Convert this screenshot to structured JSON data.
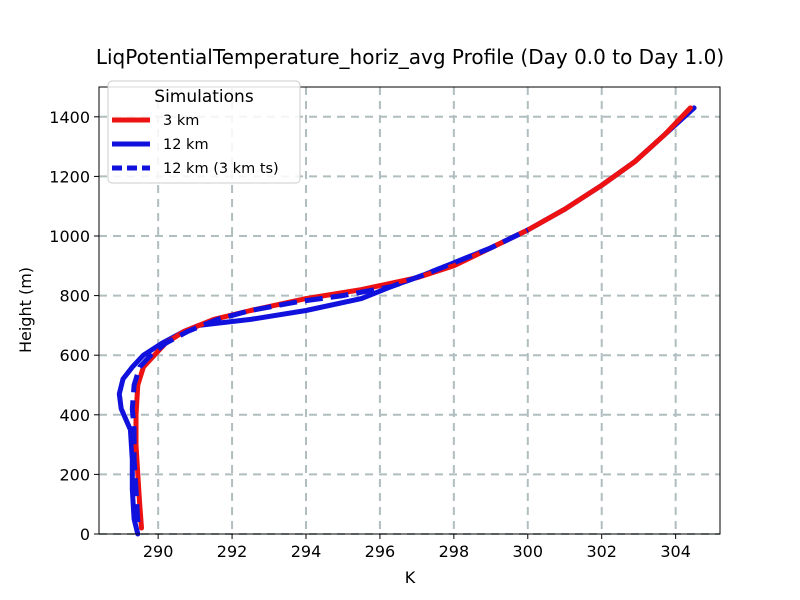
{
  "chart_data": {
    "type": "line",
    "title": "LiqPotentialTemperature_horiz_avg Profile (Day 0.0 to Day 1.0)",
    "xlabel": "K",
    "ylabel": "Height (m)",
    "xlim": [
      288.4,
      305.2
    ],
    "ylim": [
      0,
      1500
    ],
    "xticks": [
      290,
      292,
      294,
      296,
      298,
      300,
      302,
      304
    ],
    "yticks": [
      0,
      200,
      400,
      600,
      800,
      1000,
      1200,
      1400
    ],
    "grid": true,
    "legend": {
      "title": "Simulations",
      "placement": "upper-left"
    },
    "series": [
      {
        "name": "3 km",
        "color": "#ee1111",
        "dash": "solid",
        "points": [
          [
            289.55,
            20
          ],
          [
            289.5,
            100
          ],
          [
            289.45,
            200
          ],
          [
            289.4,
            300
          ],
          [
            289.4,
            400
          ],
          [
            289.45,
            500
          ],
          [
            289.6,
            560
          ],
          [
            289.9,
            600
          ],
          [
            290.2,
            640
          ],
          [
            290.7,
            680
          ],
          [
            291.5,
            720
          ],
          [
            292.5,
            750
          ],
          [
            294,
            790
          ],
          [
            295.5,
            820
          ],
          [
            297,
            860
          ],
          [
            298,
            900
          ],
          [
            299,
            960
          ],
          [
            300,
            1020
          ],
          [
            301,
            1090
          ],
          [
            302,
            1170
          ],
          [
            302.9,
            1250
          ],
          [
            303.7,
            1340
          ],
          [
            304.4,
            1430
          ]
        ]
      },
      {
        "name": "12 km",
        "color": "#1111dd",
        "dash": "solid",
        "points": [
          [
            289.45,
            0
          ],
          [
            289.35,
            50
          ],
          [
            289.3,
            150
          ],
          [
            289.3,
            250
          ],
          [
            289.25,
            350
          ],
          [
            289.0,
            420
          ],
          [
            288.95,
            470
          ],
          [
            289.05,
            520
          ],
          [
            289.3,
            560
          ],
          [
            289.6,
            600
          ],
          [
            290.1,
            640
          ],
          [
            290.7,
            680
          ],
          [
            291.1,
            700
          ],
          [
            292.5,
            720
          ],
          [
            294,
            750
          ],
          [
            295.5,
            790
          ],
          [
            296.3,
            830
          ],
          [
            297.2,
            870
          ],
          [
            298,
            910
          ],
          [
            299,
            960
          ],
          [
            300,
            1020
          ],
          [
            301,
            1090
          ],
          [
            302,
            1170
          ],
          [
            302.9,
            1250
          ],
          [
            303.7,
            1340
          ],
          [
            304.5,
            1430
          ]
        ]
      },
      {
        "name": "12 km (3 km ts)",
        "color": "#1111dd",
        "dash": "dashed",
        "points": [
          [
            289.45,
            40
          ],
          [
            289.4,
            150
          ],
          [
            289.35,
            250
          ],
          [
            289.35,
            350
          ],
          [
            289.3,
            420
          ],
          [
            289.35,
            500
          ],
          [
            289.5,
            560
          ],
          [
            289.8,
            600
          ],
          [
            290.2,
            640
          ],
          [
            290.8,
            680
          ],
          [
            291.6,
            720
          ],
          [
            292.5,
            750
          ],
          [
            293.8,
            780
          ],
          [
            295,
            800
          ],
          [
            296.3,
            830
          ],
          [
            297.2,
            870
          ],
          [
            298,
            910
          ],
          [
            299,
            960
          ],
          [
            300,
            1020
          ]
        ]
      }
    ]
  }
}
